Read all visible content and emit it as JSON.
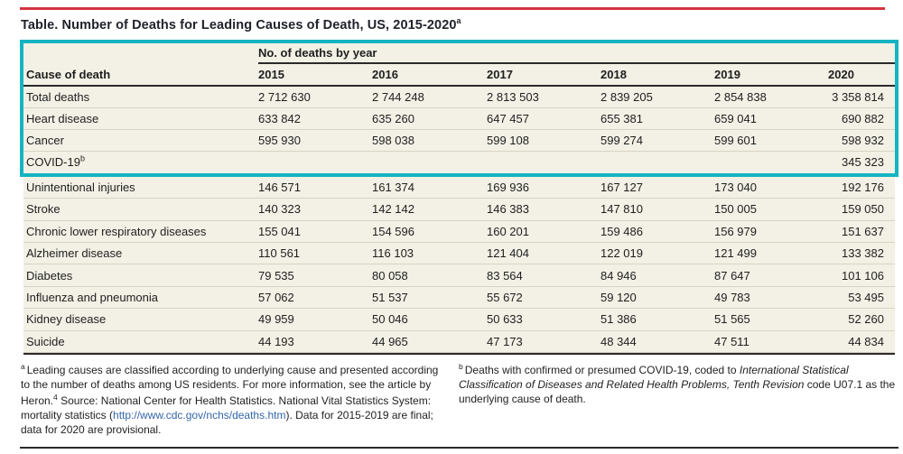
{
  "title": {
    "text": "Table. Number of Deaths for Leading Causes of Death, US, 2015-2020",
    "sup": "a"
  },
  "table": {
    "group_header": "No. of deaths by year",
    "row_header": "Cause of death",
    "years": [
      "2015",
      "2016",
      "2017",
      "2018",
      "2019",
      "2020"
    ],
    "highlight_rows": [
      {
        "label": "Total deaths",
        "sup": "",
        "values": [
          "2 712 630",
          "2 744 248",
          "2 813 503",
          "2 839 205",
          "2 854 838",
          "3 358 814"
        ]
      },
      {
        "label": "Heart disease",
        "sup": "",
        "values": [
          "633 842",
          "635 260",
          "647 457",
          "655 381",
          "659 041",
          "690 882"
        ]
      },
      {
        "label": "Cancer",
        "sup": "",
        "values": [
          "595 930",
          "598 038",
          "599 108",
          "599 274",
          "599 601",
          "598 932"
        ]
      },
      {
        "label": "COVID-19",
        "sup": "b",
        "values": [
          "",
          "",
          "",
          "",
          "",
          "345 323"
        ]
      }
    ],
    "rows": [
      {
        "label": "Unintentional injuries",
        "sup": "",
        "values": [
          "146 571",
          "161 374",
          "169 936",
          "167 127",
          "173 040",
          "192 176"
        ]
      },
      {
        "label": "Stroke",
        "sup": "",
        "values": [
          "140 323",
          "142 142",
          "146 383",
          "147 810",
          "150 005",
          "159 050"
        ]
      },
      {
        "label": "Chronic lower respiratory diseases",
        "sup": "",
        "values": [
          "155 041",
          "154 596",
          "160 201",
          "159 486",
          "156 979",
          "151 637"
        ]
      },
      {
        "label": "Alzheimer disease",
        "sup": "",
        "values": [
          "110 561",
          "116 103",
          "121 404",
          "122 019",
          "121 499",
          "133 382"
        ]
      },
      {
        "label": "Diabetes",
        "sup": "",
        "values": [
          "79 535",
          "80 058",
          "83 564",
          "84 946",
          "87 647",
          "101 106"
        ]
      },
      {
        "label": "Influenza and pneumonia",
        "sup": "",
        "values": [
          "57 062",
          "51 537",
          "55 672",
          "59 120",
          "49 783",
          "53 495"
        ]
      },
      {
        "label": "Kidney disease",
        "sup": "",
        "values": [
          "49 959",
          "50 046",
          "50 633",
          "51 386",
          "51 565",
          "52 260"
        ]
      },
      {
        "label": "Suicide",
        "sup": "",
        "values": [
          "44 193",
          "44 965",
          "47 173",
          "48 344",
          "47 511",
          "44 834"
        ]
      }
    ]
  },
  "footnotes": {
    "a": {
      "marker": "a",
      "text_1": "Leading causes are classified according to underlying cause and presented according to the number of deaths among US residents. For more information, see the article by Heron.",
      "ref_sup": "4",
      "text_2": " Source: National Center for Health Statistics. National Vital Statistics System: mortality statistics (",
      "link": "http://www.cdc.gov/nchs/deaths.htm",
      "text_3": "). Data for 2015-2019 are final; data for 2020 are provisional."
    },
    "b": {
      "marker": "b",
      "text_1": "Deaths with confirmed or presumed COVID-19, coded to ",
      "italic": "International Statistical Classification of Diseases and Related Health Problems, Tenth Revision",
      "text_2": " code U07.1 as the underlying cause of death."
    }
  },
  "colors": {
    "accent_red": "#d53341",
    "highlight_teal": "#14b4c1",
    "table_background": "#f3f0e5",
    "row_divider": "#d9d3c3",
    "rule_dark": "#2a2a2a",
    "link_blue": "#3465a8"
  }
}
